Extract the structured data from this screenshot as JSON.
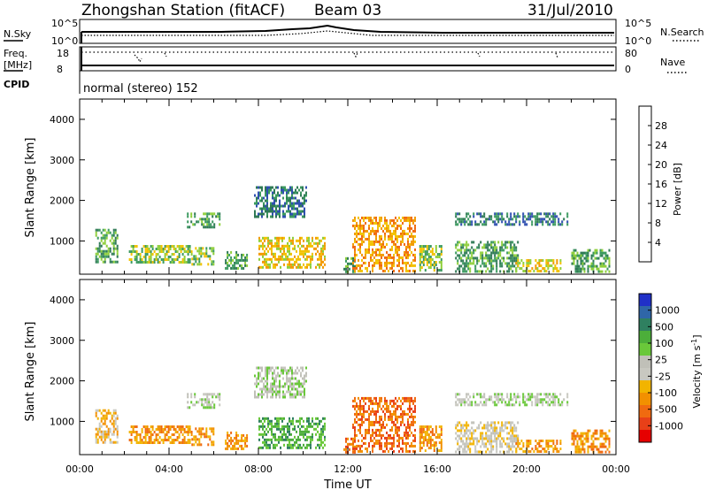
{
  "header": {
    "station": "Zhongshan Station (fitACF)",
    "beam": "Beam 03",
    "date": "31/Jul/2010"
  },
  "info_panels": {
    "nsky_label": "N.Sky",
    "nsky_ticks": [
      "10^5",
      "10^0"
    ],
    "nsearch_label": "N.Search",
    "nsearch_ticks": [
      "10^5",
      "10^0"
    ],
    "freq_label": "Freq.",
    "freq_unit": "[MHz]",
    "freq_ticks": [
      "18",
      "8"
    ],
    "nave_label": "Nave",
    "nave_ticks": [
      "80",
      "0"
    ],
    "cpid_label": "CPID",
    "cpid_text": "normal (stereo) 152"
  },
  "colors": {
    "power_scale": [
      "#1e1ee6",
      "#2f4fb0",
      "#2f7a55",
      "#3c9a60",
      "#8fcf3a",
      "#f2c200",
      "#f29a00",
      "#f06a10",
      "#e83010",
      "#e60000"
    ],
    "velocity_scale": [
      "#2030c8",
      "#2f66a8",
      "#2f8060",
      "#4cae3a",
      "#6ac83a",
      "#c0c0b8",
      "#c8c8c0",
      "#f2b400",
      "#f29000",
      "#f06a10",
      "#e84018",
      "#e60000"
    ]
  },
  "chart_data": [
    {
      "type": "heatmap",
      "name": "Power",
      "ylabel": "Slant Range [km]",
      "yticks": [
        "1000",
        "2000",
        "3000",
        "4000"
      ],
      "ylim": [
        180,
        4500
      ],
      "xlim": [
        0,
        24
      ],
      "colorbar_label": "Power [dB]",
      "colorbar_ticks": [
        "4",
        "8",
        "12",
        "16",
        "20",
        "24",
        "28"
      ],
      "colorbar_range": [
        0,
        32
      ],
      "echo_regions_hours_km": [
        {
          "t0": 0.7,
          "t1": 1.7,
          "r0": 500,
          "r1": 1300,
          "level": 10
        },
        {
          "t0": 2.2,
          "t1": 5.0,
          "r0": 450,
          "r1": 900,
          "level": 14
        },
        {
          "t0": 4.8,
          "t1": 6.3,
          "r0": 1350,
          "r1": 1700,
          "level": 12
        },
        {
          "t0": 5.0,
          "t1": 6.0,
          "r0": 400,
          "r1": 850,
          "level": 13
        },
        {
          "t0": 6.5,
          "t1": 7.5,
          "r0": 350,
          "r1": 750,
          "level": 12
        },
        {
          "t0": 7.8,
          "t1": 10.1,
          "r0": 1600,
          "r1": 2350,
          "level": 8
        },
        {
          "t0": 8.0,
          "t1": 11.0,
          "r0": 350,
          "r1": 1100,
          "level": 16
        },
        {
          "t0": 11.8,
          "t1": 12.3,
          "r0": 250,
          "r1": 600,
          "level": 10
        },
        {
          "t0": 12.2,
          "t1": 15.0,
          "r0": 250,
          "r1": 1600,
          "level": 20
        },
        {
          "t0": 15.2,
          "t1": 16.2,
          "r0": 250,
          "r1": 900,
          "level": 14
        },
        {
          "t0": 16.8,
          "t1": 21.8,
          "r0": 1400,
          "r1": 1700,
          "level": 6
        },
        {
          "t0": 16.8,
          "t1": 19.6,
          "r0": 250,
          "r1": 1000,
          "level": 12
        },
        {
          "t0": 19.5,
          "t1": 21.5,
          "r0": 250,
          "r1": 550,
          "level": 16
        },
        {
          "t0": 22.0,
          "t1": 23.7,
          "r0": 250,
          "r1": 800,
          "level": 12
        }
      ]
    },
    {
      "type": "heatmap",
      "name": "Velocity",
      "ylabel": "Slant Range [km]",
      "yticks": [
        "1000",
        "2000",
        "3000",
        "4000"
      ],
      "ylim": [
        180,
        4500
      ],
      "xlim": [
        0,
        24
      ],
      "xlabel": "Time UT",
      "xticks": [
        "00:00",
        "04:00",
        "08:00",
        "12:00",
        "16:00",
        "20:00",
        "00:00"
      ],
      "colorbar_label": "Velocity [m s",
      "colorbar_unit_exp": "-1",
      "colorbar_unit_close": "]",
      "colorbar_ticks": [
        "1000",
        "500",
        "100",
        "25",
        "-25",
        "-100",
        "-500",
        "-1000"
      ],
      "echo_regions_hours_km": [
        {
          "t0": 0.7,
          "t1": 1.7,
          "r0": 500,
          "r1": 1300,
          "level": 7
        },
        {
          "t0": 2.2,
          "t1": 5.0,
          "r0": 450,
          "r1": 900,
          "level": 8
        },
        {
          "t0": 4.8,
          "t1": 6.3,
          "r0": 1350,
          "r1": 1700,
          "level": 5
        },
        {
          "t0": 5.0,
          "t1": 6.0,
          "r0": 400,
          "r1": 850,
          "level": 8
        },
        {
          "t0": 6.5,
          "t1": 7.5,
          "r0": 350,
          "r1": 750,
          "level": 8
        },
        {
          "t0": 7.8,
          "t1": 10.1,
          "r0": 1600,
          "r1": 2350,
          "level": 5
        },
        {
          "t0": 8.0,
          "t1": 11.0,
          "r0": 350,
          "r1": 1100,
          "level": 3
        },
        {
          "t0": 11.8,
          "t1": 12.3,
          "r0": 250,
          "r1": 600,
          "level": 9
        },
        {
          "t0": 12.2,
          "t1": 15.0,
          "r0": 250,
          "r1": 1600,
          "level": 9
        },
        {
          "t0": 15.2,
          "t1": 16.2,
          "r0": 250,
          "r1": 900,
          "level": 8
        },
        {
          "t0": 16.8,
          "t1": 21.8,
          "r0": 1400,
          "r1": 1700,
          "level": 5
        },
        {
          "t0": 16.8,
          "t1": 19.6,
          "r0": 250,
          "r1": 1000,
          "level": 6
        },
        {
          "t0": 19.5,
          "t1": 21.5,
          "r0": 250,
          "r1": 550,
          "level": 8
        },
        {
          "t0": 22.0,
          "t1": 23.7,
          "r0": 250,
          "r1": 800,
          "level": 8
        }
      ]
    }
  ]
}
